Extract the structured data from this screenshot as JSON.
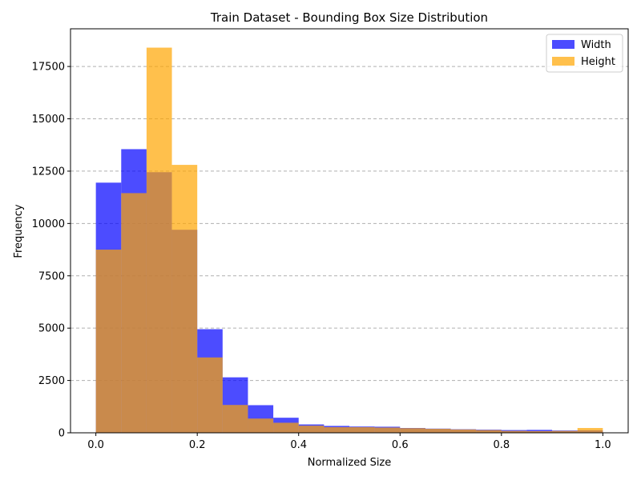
{
  "chart_data": {
    "type": "bar",
    "title": "Train Dataset - Bounding Box Size Distribution",
    "xlabel": "Normalized Size",
    "ylabel": "Frequency",
    "xlim": [
      -0.05,
      1.05
    ],
    "ylim": [
      0,
      19300
    ],
    "xticks": [
      "0.0",
      "0.2",
      "0.4",
      "0.6",
      "0.8",
      "1.0"
    ],
    "yticks": [
      "0",
      "2500",
      "5000",
      "7500",
      "10000",
      "12500",
      "15000",
      "17500"
    ],
    "grid": "y-dashed",
    "legend_position": "top-right",
    "bin_edges": [
      0.0,
      0.05,
      0.1,
      0.15,
      0.2,
      0.25,
      0.3,
      0.35,
      0.4,
      0.45,
      0.5,
      0.55,
      0.6,
      0.65,
      0.7,
      0.75,
      0.8,
      0.85,
      0.9,
      0.95,
      1.0
    ],
    "series": [
      {
        "name": "Width",
        "color": "#0000ff",
        "opacity": 0.7,
        "values": [
          11950,
          13550,
          12450,
          9700,
          4950,
          2650,
          1320,
          720,
          400,
          330,
          300,
          290,
          230,
          200,
          170,
          150,
          130,
          140,
          110,
          120
        ]
      },
      {
        "name": "Height",
        "color": "#ffa500",
        "opacity": 0.7,
        "values": [
          8750,
          11450,
          18400,
          12800,
          3600,
          1330,
          680,
          480,
          340,
          270,
          270,
          250,
          220,
          190,
          160,
          130,
          90,
          80,
          90,
          230
        ]
      }
    ]
  }
}
